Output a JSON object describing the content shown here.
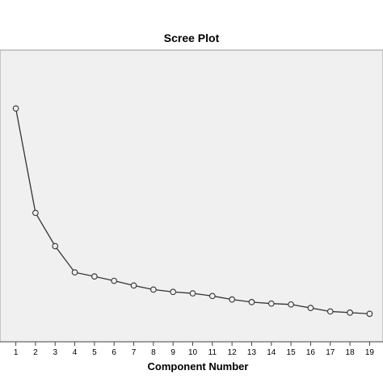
{
  "chart_data": {
    "type": "line",
    "title": "Scree Plot",
    "xlabel": "Component Number",
    "ylabel": "",
    "x": [
      1,
      2,
      3,
      4,
      5,
      6,
      7,
      8,
      9,
      10,
      11,
      12,
      13,
      14,
      15,
      16,
      17,
      18,
      19
    ],
    "xlim": [
      0.4,
      19.6
    ],
    "ylim": [
      0,
      1
    ],
    "series": [
      {
        "values": [
          0.8,
          0.442,
          0.328,
          0.238,
          0.224,
          0.209,
          0.193,
          0.179,
          0.171,
          0.166,
          0.157,
          0.145,
          0.136,
          0.131,
          0.128,
          0.116,
          0.104,
          0.1,
          0.096
        ]
      }
    ],
    "grid": false,
    "legend": "none",
    "y_tick_labels_shown": false,
    "colors": {
      "plot_background": "#f0f0f0",
      "line": "#333333",
      "marker_stroke": "#333333",
      "marker_fill": "#f0f0f0",
      "frame": "#9a9a9a",
      "page_background": "#ffffff"
    }
  }
}
